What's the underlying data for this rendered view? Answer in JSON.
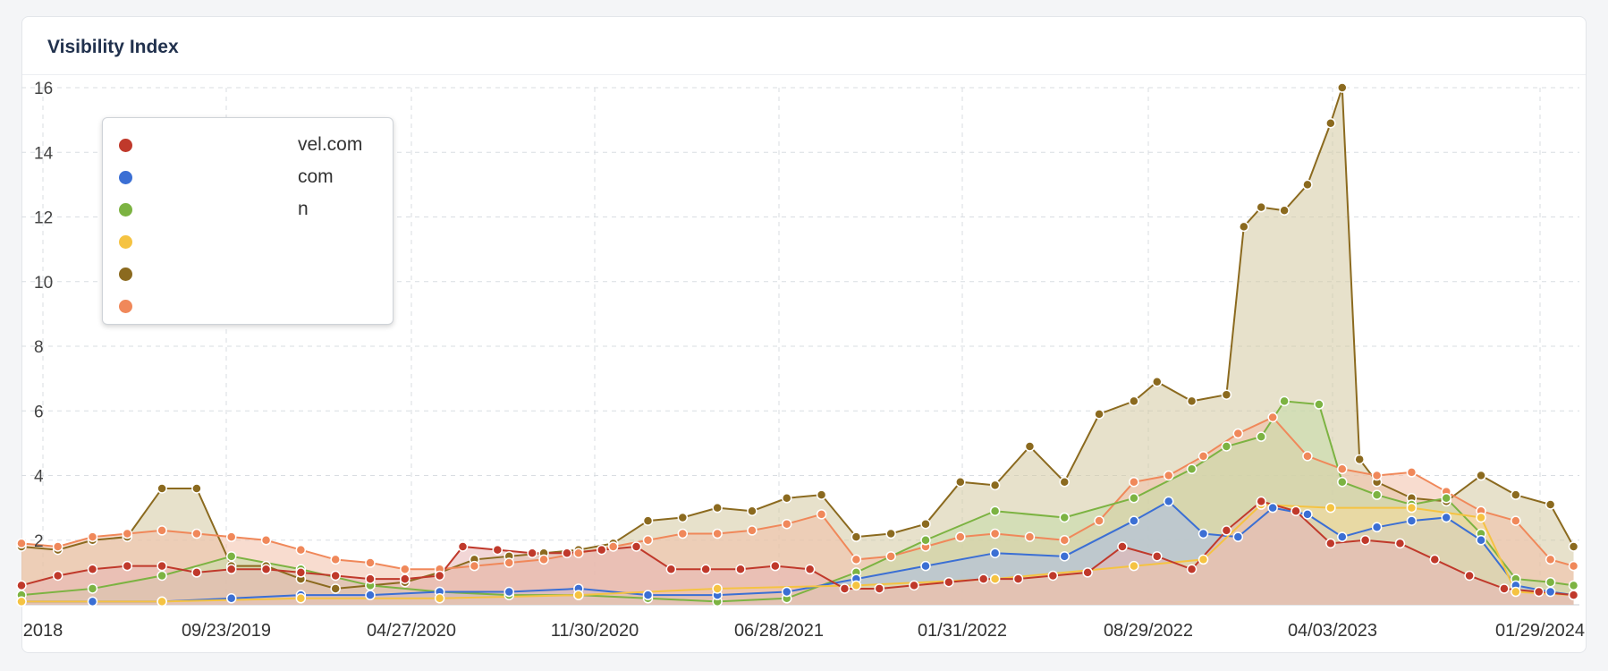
{
  "card": {
    "title": "Visibility Index"
  },
  "chart_data": {
    "type": "area",
    "title": "Visibility Index",
    "xlabel": "",
    "ylabel": "",
    "ylim": [
      0,
      16
    ],
    "y_ticks": [
      2,
      4,
      6,
      8,
      10,
      12,
      14,
      16
    ],
    "x_ticks": [
      "2018",
      "09/23/2019",
      "04/27/2020",
      "11/30/2020",
      "06/28/2021",
      "01/31/2022",
      "08/29/2022",
      "04/03/2023",
      "01/29/2024"
    ],
    "x_range": [
      "2018-12-15",
      "2024-02-12"
    ],
    "grid": true,
    "legend_position": "top-left",
    "series": [
      {
        "name": "vel.com",
        "color": "#c0392b",
        "fill": "#e8b4b4",
        "points": [
          [
            "2018-12-15",
            0.6
          ],
          [
            "2019-01-28",
            0.9
          ],
          [
            "2019-03-11",
            1.1
          ],
          [
            "2019-04-22",
            1.2
          ],
          [
            "2019-06-03",
            1.2
          ],
          [
            "2019-07-15",
            1.0
          ],
          [
            "2019-08-26",
            1.1
          ],
          [
            "2019-10-07",
            1.1
          ],
          [
            "2019-11-18",
            1.0
          ],
          [
            "2019-12-30",
            0.9
          ],
          [
            "2020-02-10",
            0.8
          ],
          [
            "2020-03-23",
            0.8
          ],
          [
            "2020-05-04",
            0.9
          ],
          [
            "2020-06-01",
            1.8
          ],
          [
            "2020-07-13",
            1.7
          ],
          [
            "2020-08-24",
            1.6
          ],
          [
            "2020-10-05",
            1.6
          ],
          [
            "2020-11-16",
            1.7
          ],
          [
            "2020-12-28",
            1.8
          ],
          [
            "2021-02-08",
            1.1
          ],
          [
            "2021-03-22",
            1.1
          ],
          [
            "2021-05-03",
            1.1
          ],
          [
            "2021-06-14",
            1.2
          ],
          [
            "2021-07-26",
            1.1
          ],
          [
            "2021-09-06",
            0.5
          ],
          [
            "2021-10-18",
            0.5
          ],
          [
            "2021-11-29",
            0.6
          ],
          [
            "2022-01-10",
            0.7
          ],
          [
            "2022-02-21",
            0.8
          ],
          [
            "2022-04-04",
            0.8
          ],
          [
            "2022-05-16",
            0.9
          ],
          [
            "2022-06-27",
            1.0
          ],
          [
            "2022-08-08",
            1.8
          ],
          [
            "2022-09-19",
            1.5
          ],
          [
            "2022-10-31",
            1.1
          ],
          [
            "2022-12-12",
            2.3
          ],
          [
            "2023-01-23",
            3.2
          ],
          [
            "2023-03-06",
            2.9
          ],
          [
            "2023-04-17",
            1.9
          ],
          [
            "2023-05-29",
            2.0
          ],
          [
            "2023-07-10",
            1.9
          ],
          [
            "2023-08-21",
            1.4
          ],
          [
            "2023-10-02",
            0.9
          ],
          [
            "2023-11-13",
            0.5
          ],
          [
            "2023-12-25",
            0.4
          ],
          [
            "2024-02-05",
            0.3
          ]
        ]
      },
      {
        "name": "com",
        "color": "#3b6fd4",
        "fill": "#a9bde8",
        "points": [
          [
            "2018-12-15",
            0.1
          ],
          [
            "2019-03-11",
            0.1
          ],
          [
            "2019-06-03",
            0.1
          ],
          [
            "2019-08-26",
            0.2
          ],
          [
            "2019-11-18",
            0.3
          ],
          [
            "2020-02-10",
            0.3
          ],
          [
            "2020-05-04",
            0.4
          ],
          [
            "2020-07-27",
            0.4
          ],
          [
            "2020-10-19",
            0.5
          ],
          [
            "2021-01-11",
            0.3
          ],
          [
            "2021-04-05",
            0.3
          ],
          [
            "2021-06-28",
            0.4
          ],
          [
            "2021-09-20",
            0.8
          ],
          [
            "2021-12-13",
            1.2
          ],
          [
            "2022-03-07",
            1.6
          ],
          [
            "2022-05-30",
            1.5
          ],
          [
            "2022-08-22",
            2.6
          ],
          [
            "2022-10-03",
            3.2
          ],
          [
            "2022-11-14",
            2.2
          ],
          [
            "2022-12-26",
            2.1
          ],
          [
            "2023-02-06",
            3.0
          ],
          [
            "2023-03-20",
            2.8
          ],
          [
            "2023-05-01",
            2.1
          ],
          [
            "2023-06-12",
            2.4
          ],
          [
            "2023-07-24",
            2.6
          ],
          [
            "2023-09-04",
            2.7
          ],
          [
            "2023-10-16",
            2.0
          ],
          [
            "2023-11-27",
            0.6
          ],
          [
            "2024-01-08",
            0.4
          ],
          [
            "2024-02-05",
            0.3
          ]
        ]
      },
      {
        "name": "n",
        "color": "#7cb342",
        "fill": "#c5dca8",
        "points": [
          [
            "2018-12-15",
            0.3
          ],
          [
            "2019-03-11",
            0.5
          ],
          [
            "2019-06-03",
            0.9
          ],
          [
            "2019-08-26",
            1.5
          ],
          [
            "2019-11-18",
            1.1
          ],
          [
            "2020-02-10",
            0.6
          ],
          [
            "2020-05-04",
            0.4
          ],
          [
            "2020-07-27",
            0.3
          ],
          [
            "2020-10-19",
            0.3
          ],
          [
            "2021-01-11",
            0.2
          ],
          [
            "2021-04-05",
            0.1
          ],
          [
            "2021-06-28",
            0.2
          ],
          [
            "2021-09-20",
            1.0
          ],
          [
            "2021-12-13",
            2.0
          ],
          [
            "2022-03-07",
            2.9
          ],
          [
            "2022-05-30",
            2.7
          ],
          [
            "2022-08-22",
            3.3
          ],
          [
            "2022-10-31",
            4.2
          ],
          [
            "2022-12-12",
            4.9
          ],
          [
            "2023-01-23",
            5.2
          ],
          [
            "2023-02-20",
            6.3
          ],
          [
            "2023-04-03",
            6.2
          ],
          [
            "2023-05-01",
            3.8
          ],
          [
            "2023-06-12",
            3.4
          ],
          [
            "2023-07-24",
            3.1
          ],
          [
            "2023-09-04",
            3.3
          ],
          [
            "2023-10-16",
            2.2
          ],
          [
            "2023-11-27",
            0.8
          ],
          [
            "2024-01-08",
            0.7
          ],
          [
            "2024-02-05",
            0.6
          ]
        ]
      },
      {
        "name": "",
        "color": "#f5c342",
        "fill": "#f5dc9c",
        "points": [
          [
            "2018-12-15",
            0.1
          ],
          [
            "2019-06-03",
            0.1
          ],
          [
            "2019-11-18",
            0.2
          ],
          [
            "2020-05-04",
            0.2
          ],
          [
            "2020-10-19",
            0.3
          ],
          [
            "2021-04-05",
            0.5
          ],
          [
            "2021-09-20",
            0.6
          ],
          [
            "2022-03-07",
            0.8
          ],
          [
            "2022-08-22",
            1.2
          ],
          [
            "2022-11-14",
            1.4
          ],
          [
            "2023-01-23",
            3.1
          ],
          [
            "2023-04-17",
            3.0
          ],
          [
            "2023-07-24",
            3.0
          ],
          [
            "2023-10-16",
            2.7
          ],
          [
            "2023-11-27",
            0.4
          ],
          [
            "2024-02-05",
            0.3
          ]
        ]
      },
      {
        "name": "",
        "color": "#8b6a1f",
        "fill": "#d4c8a0",
        "points": [
          [
            "2018-12-15",
            1.8
          ],
          [
            "2019-01-28",
            1.7
          ],
          [
            "2019-03-11",
            2.0
          ],
          [
            "2019-04-22",
            2.1
          ],
          [
            "2019-06-03",
            3.6
          ],
          [
            "2019-07-15",
            3.6
          ],
          [
            "2019-08-26",
            1.2
          ],
          [
            "2019-10-07",
            1.2
          ],
          [
            "2019-11-18",
            0.8
          ],
          [
            "2019-12-30",
            0.5
          ],
          [
            "2020-02-10",
            0.6
          ],
          [
            "2020-03-23",
            0.7
          ],
          [
            "2020-05-04",
            1.0
          ],
          [
            "2020-06-15",
            1.4
          ],
          [
            "2020-07-27",
            1.5
          ],
          [
            "2020-09-07",
            1.6
          ],
          [
            "2020-10-19",
            1.7
          ],
          [
            "2020-11-30",
            1.9
          ],
          [
            "2021-01-11",
            2.6
          ],
          [
            "2021-02-22",
            2.7
          ],
          [
            "2021-04-05",
            3.0
          ],
          [
            "2021-05-17",
            2.9
          ],
          [
            "2021-06-28",
            3.3
          ],
          [
            "2021-08-09",
            3.4
          ],
          [
            "2021-09-20",
            2.1
          ],
          [
            "2021-11-01",
            2.2
          ],
          [
            "2021-12-13",
            2.5
          ],
          [
            "2022-01-24",
            3.8
          ],
          [
            "2022-03-07",
            3.7
          ],
          [
            "2022-04-18",
            4.9
          ],
          [
            "2022-05-30",
            3.8
          ],
          [
            "2022-07-11",
            5.9
          ],
          [
            "2022-08-22",
            6.3
          ],
          [
            "2022-09-19",
            6.9
          ],
          [
            "2022-10-31",
            6.3
          ],
          [
            "2022-12-12",
            6.5
          ],
          [
            "2023-01-02",
            11.7
          ],
          [
            "2023-01-23",
            12.3
          ],
          [
            "2023-02-20",
            12.2
          ],
          [
            "2023-03-20",
            13.0
          ],
          [
            "2023-04-17",
            14.9
          ],
          [
            "2023-05-01",
            16.0
          ],
          [
            "2023-05-22",
            4.5
          ],
          [
            "2023-06-12",
            3.8
          ],
          [
            "2023-07-24",
            3.3
          ],
          [
            "2023-09-04",
            3.2
          ],
          [
            "2023-10-16",
            4.0
          ],
          [
            "2023-11-27",
            3.4
          ],
          [
            "2024-01-08",
            3.1
          ],
          [
            "2024-02-05",
            1.8
          ]
        ]
      },
      {
        "name": "",
        "color": "#f0885a",
        "fill": "#f3c0a8",
        "points": [
          [
            "2018-12-15",
            1.9
          ],
          [
            "2019-01-28",
            1.8
          ],
          [
            "2019-03-11",
            2.1
          ],
          [
            "2019-04-22",
            2.2
          ],
          [
            "2019-06-03",
            2.3
          ],
          [
            "2019-07-15",
            2.2
          ],
          [
            "2019-08-26",
            2.1
          ],
          [
            "2019-10-07",
            2.0
          ],
          [
            "2019-11-18",
            1.7
          ],
          [
            "2019-12-30",
            1.4
          ],
          [
            "2020-02-10",
            1.3
          ],
          [
            "2020-03-23",
            1.1
          ],
          [
            "2020-05-04",
            1.1
          ],
          [
            "2020-06-15",
            1.2
          ],
          [
            "2020-07-27",
            1.3
          ],
          [
            "2020-09-07",
            1.4
          ],
          [
            "2020-10-19",
            1.6
          ],
          [
            "2020-11-30",
            1.8
          ],
          [
            "2021-01-11",
            2.0
          ],
          [
            "2021-02-22",
            2.2
          ],
          [
            "2021-04-05",
            2.2
          ],
          [
            "2021-05-17",
            2.3
          ],
          [
            "2021-06-28",
            2.5
          ],
          [
            "2021-08-09",
            2.8
          ],
          [
            "2021-09-20",
            1.4
          ],
          [
            "2021-11-01",
            1.5
          ],
          [
            "2021-12-13",
            1.8
          ],
          [
            "2022-01-24",
            2.1
          ],
          [
            "2022-03-07",
            2.2
          ],
          [
            "2022-04-18",
            2.1
          ],
          [
            "2022-05-30",
            2.0
          ],
          [
            "2022-07-11",
            2.6
          ],
          [
            "2022-08-22",
            3.8
          ],
          [
            "2022-10-03",
            4.0
          ],
          [
            "2022-11-14",
            4.6
          ],
          [
            "2022-12-26",
            5.3
          ],
          [
            "2023-02-06",
            5.8
          ],
          [
            "2023-03-20",
            4.6
          ],
          [
            "2023-05-01",
            4.2
          ],
          [
            "2023-06-12",
            4.0
          ],
          [
            "2023-07-24",
            4.1
          ],
          [
            "2023-09-04",
            3.5
          ],
          [
            "2023-10-16",
            2.9
          ],
          [
            "2023-11-27",
            2.6
          ],
          [
            "2024-01-08",
            1.4
          ],
          [
            "2024-02-05",
            1.2
          ]
        ]
      }
    ]
  },
  "legend": {
    "items": [
      {
        "label": "vel.com",
        "color": "#c0392b"
      },
      {
        "label": "com",
        "color": "#3b6fd4"
      },
      {
        "label": "n",
        "color": "#7cb342"
      },
      {
        "label": "",
        "color": "#f5c342"
      },
      {
        "label": "",
        "color": "#8b6a1f"
      },
      {
        "label": "",
        "color": "#f0885a"
      }
    ]
  }
}
